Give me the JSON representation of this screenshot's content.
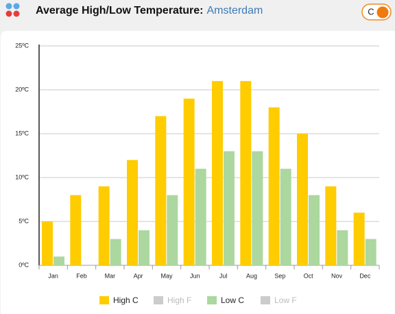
{
  "header": {
    "title": "Average High/Low Temperature:",
    "location": "Amsterdam",
    "unit_toggle": "C"
  },
  "chart_data": {
    "type": "bar",
    "categories": [
      "Jan",
      "Feb",
      "Mar",
      "Apr",
      "May",
      "Jun",
      "Jul",
      "Aug",
      "Sep",
      "Oct",
      "Nov",
      "Dec"
    ],
    "series": [
      {
        "name": "High C",
        "color": "#ffcc00",
        "values": [
          5,
          8,
          9,
          12,
          17,
          19,
          21,
          21,
          18,
          15,
          9,
          6
        ]
      },
      {
        "name": "Low C",
        "color": "#acd79f",
        "values": [
          1,
          0,
          3,
          4,
          8,
          11,
          13,
          13,
          11,
          8,
          4,
          3
        ]
      }
    ],
    "hidden_series": [
      {
        "name": "High F",
        "color": "#cccccc"
      },
      {
        "name": "Low F",
        "color": "#cccccc"
      }
    ],
    "ylim": [
      0,
      25
    ],
    "yticks": [
      {
        "value": 0,
        "label": "0ºC"
      },
      {
        "value": 5,
        "label": "5ºC"
      },
      {
        "value": 10,
        "label": "10ºC"
      },
      {
        "value": 15,
        "label": "15ºC"
      },
      {
        "value": 20,
        "label": "20ºC"
      },
      {
        "value": 25,
        "label": "25ºC"
      }
    ],
    "grid": true,
    "legend": "bottom"
  }
}
